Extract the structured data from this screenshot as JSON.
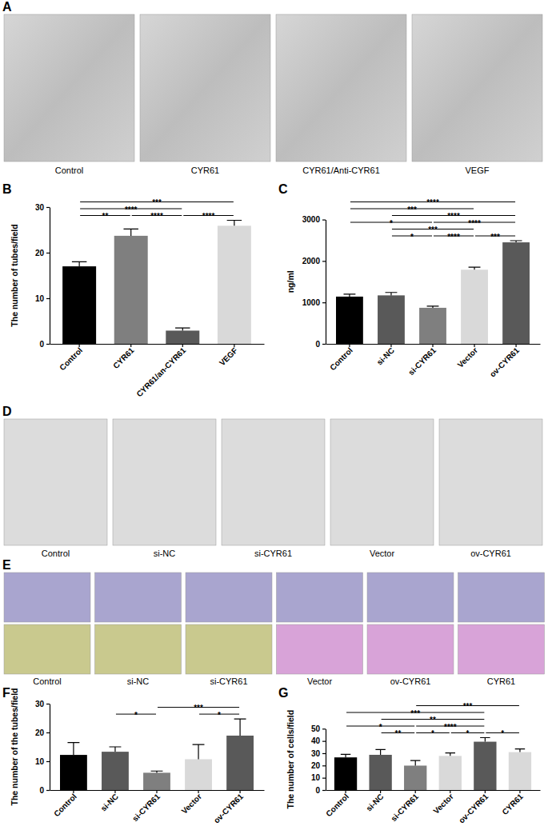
{
  "chart_data": [
    {
      "type": "bar",
      "title": "B",
      "categories": [
        "Control",
        "CYR61",
        "CYR61/an-CYR61",
        "VEGF"
      ],
      "values": [
        17.0,
        23.7,
        2.9,
        25.9
      ],
      "errors": [
        1.0,
        1.5,
        0.6,
        1.2
      ],
      "colors": [
        "#000000",
        "#7f7f7f",
        "#595959",
        "#d9d9d9"
      ],
      "ylabel": "The number of tubes/field",
      "ylim": [
        0,
        30
      ],
      "yticks": [
        0,
        10,
        20,
        30
      ],
      "annotations": [
        {
          "from": 0,
          "to": 1,
          "text": "**"
        },
        {
          "from": 2,
          "to": 3,
          "text": "****"
        },
        {
          "from": 1,
          "to": 2,
          "text": "****"
        },
        {
          "from": 0,
          "to": 2,
          "text": "****"
        },
        {
          "from": 0,
          "to": 3,
          "text": "***"
        }
      ]
    },
    {
      "type": "bar",
      "title": "C",
      "categories": [
        "Control",
        "si-NC",
        "si-CYR61",
        "Vector",
        "ov-CYR61"
      ],
      "values": [
        1140,
        1170,
        870,
        1790,
        2450
      ],
      "errors": [
        60,
        70,
        40,
        60,
        40
      ],
      "colors": [
        "#000000",
        "#595959",
        "#7f7f7f",
        "#d9d9d9",
        "#595959"
      ],
      "ylabel": "ng/ml",
      "ylim": [
        0,
        3000
      ],
      "yticks": [
        0,
        1000,
        2000,
        3000
      ],
      "annotations": [
        {
          "from": 1,
          "to": 2,
          "text": "*"
        },
        {
          "from": 2,
          "to": 3,
          "text": "****"
        },
        {
          "from": 3,
          "to": 4,
          "text": "***"
        },
        {
          "from": 1,
          "to": 3,
          "text": "***"
        },
        {
          "from": 2,
          "to": 4,
          "text": "****"
        },
        {
          "from": 0,
          "to": 2,
          "text": "*"
        },
        {
          "from": 1,
          "to": 4,
          "text": "****"
        },
        {
          "from": 0,
          "to": 3,
          "text": "***"
        },
        {
          "from": 0,
          "to": 4,
          "text": "****"
        }
      ]
    },
    {
      "type": "bar",
      "title": "F",
      "categories": [
        "Control",
        "si-NC",
        "si-CYR61",
        "Vector",
        "ov-CYR61"
      ],
      "values": [
        12.2,
        13.3,
        6.0,
        10.7,
        18.9
      ],
      "errors": [
        4.3,
        1.7,
        0.6,
        5.1,
        5.8
      ],
      "colors": [
        "#000000",
        "#595959",
        "#7f7f7f",
        "#d9d9d9",
        "#595959"
      ],
      "ylabel": "The number of the tubes/field",
      "ylim": [
        0,
        30
      ],
      "yticks": [
        0,
        10,
        20,
        30
      ],
      "annotations": [
        {
          "from": 1,
          "to": 2,
          "text": "*"
        },
        {
          "from": 3,
          "to": 4,
          "text": "*"
        },
        {
          "from": 2,
          "to": 4,
          "text": "***"
        }
      ]
    },
    {
      "type": "bar",
      "title": "G",
      "categories": [
        "Control",
        "si-NC",
        "si-CYR61",
        "Vector",
        "ov-CYR61",
        "CYR61"
      ],
      "values": [
        26.6,
        28.7,
        19.9,
        27.8,
        39.4,
        30.9
      ],
      "errors": [
        2.5,
        4.3,
        4.1,
        2.4,
        3.3,
        2.6
      ],
      "colors": [
        "#000000",
        "#595959",
        "#7f7f7f",
        "#d9d9d9",
        "#595959",
        "#d9d9d9"
      ],
      "ylabel": "The number of cells/field",
      "ylim": [
        0,
        50
      ],
      "yticks": [
        0,
        10,
        20,
        30,
        40,
        50
      ],
      "annotations": [
        {
          "from": 1,
          "to": 2,
          "text": "**"
        },
        {
          "from": 2,
          "to": 3,
          "text": "*"
        },
        {
          "from": 3,
          "to": 4,
          "text": "*"
        },
        {
          "from": 4,
          "to": 5,
          "text": "*"
        },
        {
          "from": 0,
          "to": 2,
          "text": "*"
        },
        {
          "from": 2,
          "to": 4,
          "text": "****"
        },
        {
          "from": 1,
          "to": 4,
          "text": "**"
        },
        {
          "from": 0,
          "to": 4,
          "text": "***"
        },
        {
          "from": 2,
          "to": 5,
          "text": "***"
        }
      ]
    }
  ],
  "image_panels": [
    {
      "label": "A",
      "captions": [
        "Control",
        "CYR61",
        "CYR61/Anti-CYR61",
        "VEGF"
      ]
    },
    {
      "label": "D",
      "captions": [
        "Control",
        "si-NC",
        "si-CYR61",
        "Vector",
        "ov-CYR61"
      ]
    },
    {
      "label": "E",
      "captions": [
        "Control",
        "si-NC",
        "si-CYR61",
        "Vector",
        "ov-CYR61",
        "CYR61"
      ]
    }
  ]
}
